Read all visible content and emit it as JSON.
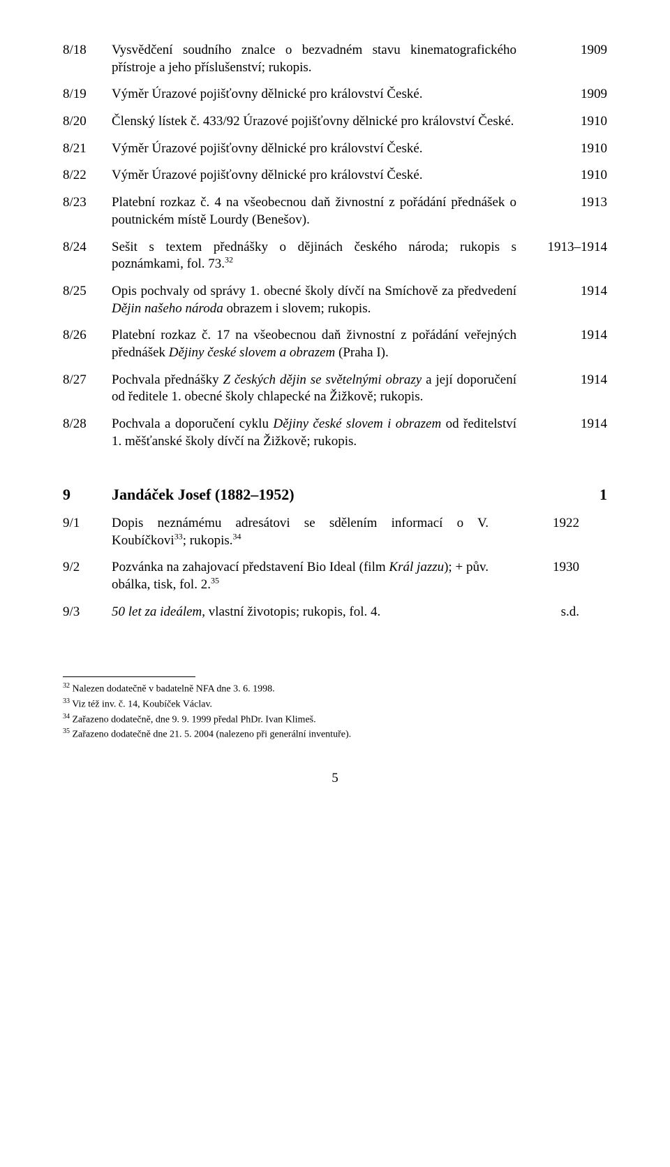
{
  "entries": [
    {
      "num": "8/18",
      "desc": "Vysvědčení soudního znalce o bezvadném stavu kinematografického přístroje a jeho příslušenství; rukopis.",
      "year": "1909"
    },
    {
      "num": "8/19",
      "desc": "Výměr Úrazové pojišťovny dělnické pro království České.",
      "year": "1909"
    },
    {
      "num": "8/20",
      "desc": "Členský lístek č. 433/92 Úrazové pojišťovny dělnické pro království České.",
      "year": "1910"
    },
    {
      "num": "8/21",
      "desc": "Výměr Úrazové pojišťovny dělnické pro království České.",
      "year": "1910"
    },
    {
      "num": "8/22",
      "desc": "Výměr Úrazové pojišťovny dělnické pro království České.",
      "year": "1910"
    },
    {
      "num": "8/23",
      "desc": "Platební rozkaz č. 4 na všeobecnou daň živnostní z pořádání přednášek o poutnickém místě Lourdy (Benešov).",
      "year": "1913"
    },
    {
      "num": "8/24",
      "desc": "Sešit s textem přednášky o dějinách českého národa; rukopis s poznámkami, fol. 73.",
      "sup": "32",
      "year": "1913–1914"
    },
    {
      "num": "8/25",
      "desc_pre": "Opis pochvaly od správy 1. obecné školy dívčí na Smíchově za předvedení ",
      "italic": "Dějin našeho národa",
      "desc_post": " obrazem i slovem; rukopis.",
      "year": "1914"
    },
    {
      "num": "8/26",
      "desc_pre": "Platební rozkaz č. 17 na všeobecnou daň živnostní z pořádání veřejných přednášek ",
      "italic": "Dějiny české slovem a obrazem",
      "desc_post": " (Praha I).",
      "year": "1914"
    },
    {
      "num": "8/27",
      "desc_pre": "Pochvala přednášky ",
      "italic": "Z českých dějin se světelnými obrazy",
      "desc_post": " a její doporučení od ředitele 1. obecné školy chlapecké na Žižkově; rukopis.",
      "year": "1914"
    },
    {
      "num": "8/28",
      "desc_pre": "Pochvala a doporučení cyklu ",
      "italic": "Dějiny české slovem i obrazem",
      "desc_post": " od ředitelství 1. měšťanské školy dívčí na Žižkově; rukopis.",
      "year": "1914"
    }
  ],
  "section": {
    "num": "9",
    "title": "Jandáček Josef (1882–1952)",
    "extra": "1"
  },
  "sub_entries": [
    {
      "num": "9/1",
      "desc_pre": "Dopis neznámému adresátovi se sdělením informací o V. Koubíčkovi",
      "sup1": "33",
      "mid": "; rukopis.",
      "sup2": "34",
      "year": "1922"
    },
    {
      "num": "9/2",
      "desc_pre": "Pozvánka na zahajovací představení Bio Ideal (film ",
      "italic": "Král jazzu",
      "desc_post": "); + pův. obálka, tisk, fol. 2.",
      "sup": "35",
      "year": "1930"
    },
    {
      "num": "9/3",
      "italic": "50 let za ideálem",
      "desc_post": ", vlastní životopis; rukopis, fol. 4.",
      "year": "s.d."
    }
  ],
  "footnotes": [
    {
      "mark": "32",
      "text": " Nalezen dodatečně v badatelně NFA dne 3. 6. 1998."
    },
    {
      "mark": "33",
      "text": " Viz též inv. č. 14, Koubíček Václav."
    },
    {
      "mark": "34",
      "text": " Zařazeno dodatečně, dne 9. 9. 1999 předal PhDr. Ivan Klimeš."
    },
    {
      "mark": "35",
      "text": " Zařazeno dodatečně dne 21. 5. 2004 (nalezeno při generální inventuře)."
    }
  ],
  "page_number": "5"
}
